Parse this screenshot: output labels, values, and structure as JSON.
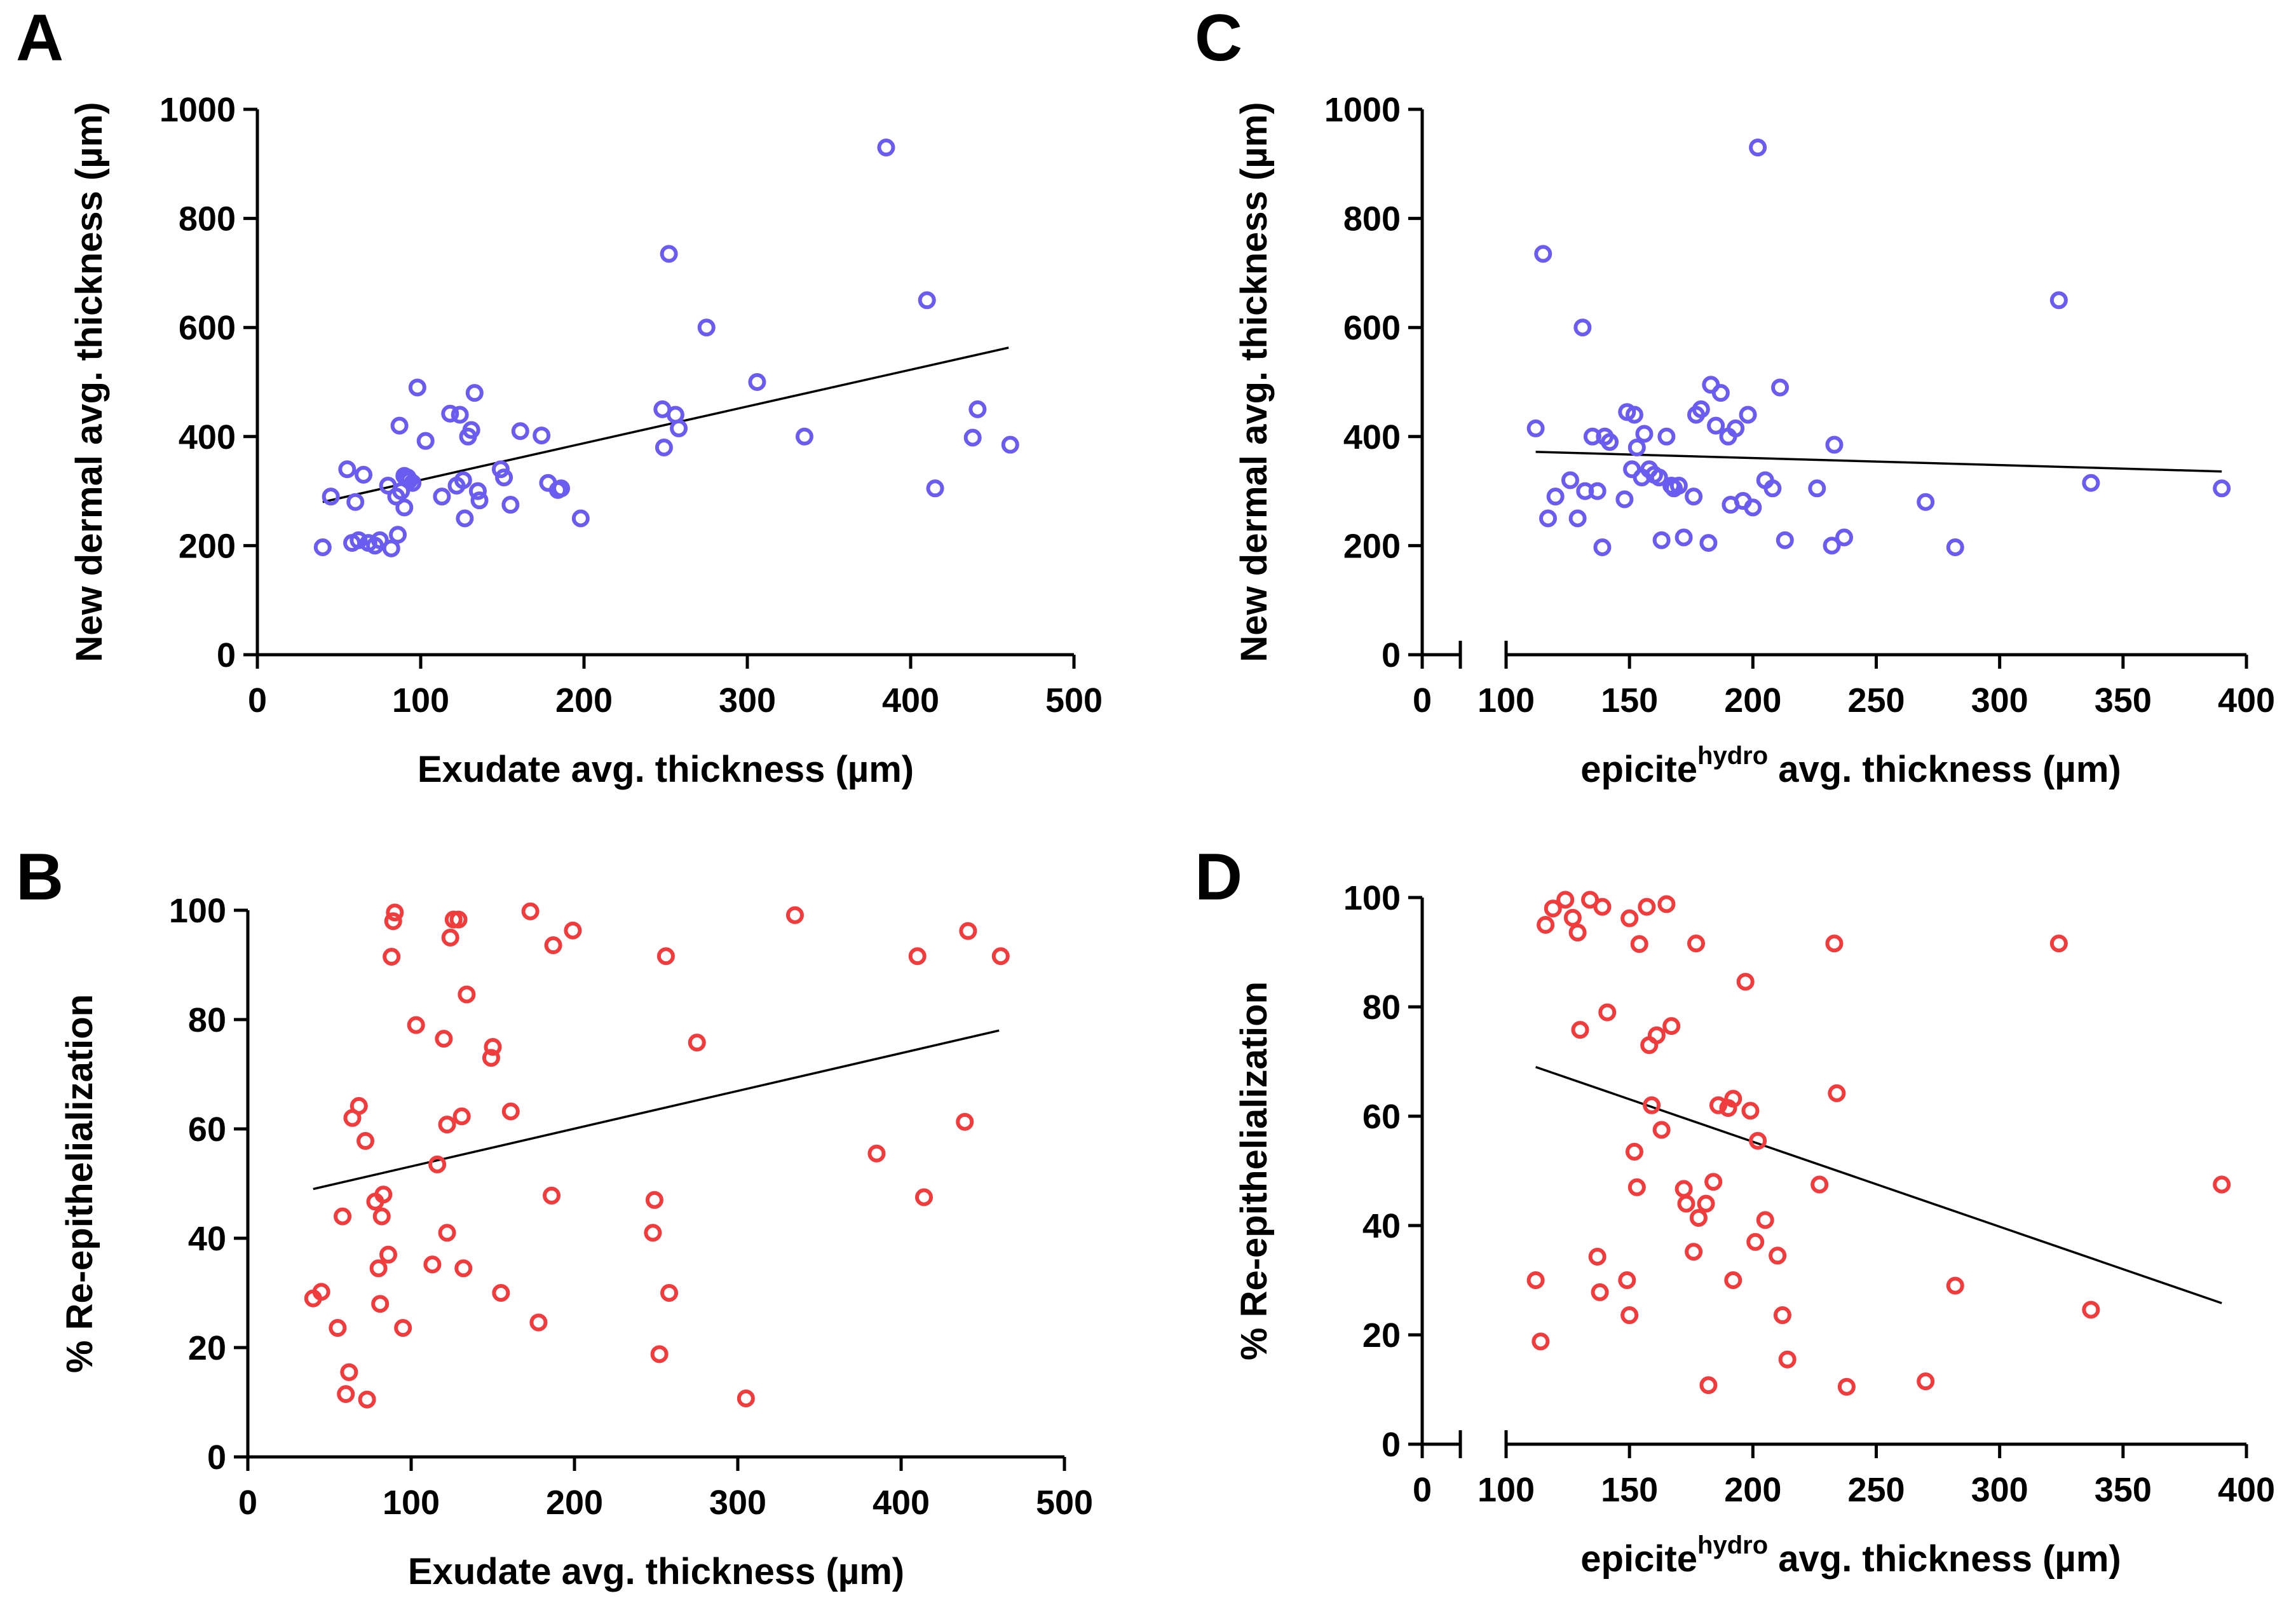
{
  "chart_data": [
    {
      "panel": "A",
      "type": "scatter",
      "xlabel": "Exudate avg. thickness (µm)",
      "ylabel": "New dermal avg. thickness (µm)",
      "xlim": [
        0,
        500
      ],
      "ylim": [
        0,
        1000
      ],
      "xticks": [
        "0",
        "100",
        "200",
        "300",
        "400",
        "500"
      ],
      "yticks": [
        "0",
        "200",
        "400",
        "600",
        "800",
        "1000"
      ],
      "marker_color": "#6b5cf0",
      "points": [
        [
          40,
          197
        ],
        [
          45,
          290
        ],
        [
          55,
          340
        ],
        [
          58,
          205
        ],
        [
          60,
          280
        ],
        [
          62,
          210
        ],
        [
          65,
          330
        ],
        [
          68,
          205
        ],
        [
          72,
          200
        ],
        [
          75,
          210
        ],
        [
          80,
          310
        ],
        [
          82,
          195
        ],
        [
          85,
          290
        ],
        [
          86,
          220
        ],
        [
          87,
          420
        ],
        [
          88,
          300
        ],
        [
          90,
          270
        ],
        [
          90,
          328
        ],
        [
          92,
          325
        ],
        [
          93,
          320
        ],
        [
          95,
          315
        ],
        [
          98,
          490
        ],
        [
          103,
          392
        ],
        [
          113,
          290
        ],
        [
          118,
          442
        ],
        [
          122,
          310
        ],
        [
          124,
          440
        ],
        [
          126,
          320
        ],
        [
          127,
          250
        ],
        [
          129,
          400
        ],
        [
          131,
          412
        ],
        [
          133,
          480
        ],
        [
          135,
          300
        ],
        [
          136,
          283
        ],
        [
          149,
          340
        ],
        [
          151,
          325
        ],
        [
          155,
          275
        ],
        [
          161,
          410
        ],
        [
          174,
          402
        ],
        [
          178,
          315
        ],
        [
          184,
          302
        ],
        [
          186,
          305
        ],
        [
          198,
          250
        ],
        [
          248,
          450
        ],
        [
          249,
          380
        ],
        [
          252,
          735
        ],
        [
          256,
          440
        ],
        [
          258,
          415
        ],
        [
          275,
          600
        ],
        [
          306,
          500
        ],
        [
          335,
          400
        ],
        [
          385,
          930
        ],
        [
          410,
          650
        ],
        [
          415,
          305
        ],
        [
          438,
          398
        ],
        [
          441,
          450
        ],
        [
          461,
          385
        ]
      ],
      "fit": [
        [
          40,
          280
        ],
        [
          460,
          563
        ]
      ]
    },
    {
      "panel": "B",
      "type": "scatter",
      "xlabel": "Exudate avg. thickness (µm)",
      "ylabel": "% Re-epithelialization",
      "xlim": [
        0,
        500
      ],
      "ylim": [
        0,
        100
      ],
      "xticks": [
        "0",
        "100",
        "200",
        "300",
        "400",
        "500"
      ],
      "yticks": [
        "0",
        "20",
        "40",
        "60",
        "80",
        "100"
      ],
      "marker_color": "#f03c3c",
      "points": [
        [
          40,
          29
        ],
        [
          45,
          30.2
        ],
        [
          55,
          23.6
        ],
        [
          58,
          44
        ],
        [
          60,
          11.5
        ],
        [
          62,
          15.5
        ],
        [
          64,
          62
        ],
        [
          68,
          64.2
        ],
        [
          72,
          57.8
        ],
        [
          73,
          10.5
        ],
        [
          78,
          46.7
        ],
        [
          80,
          34.5
        ],
        [
          81,
          28
        ],
        [
          82,
          44
        ],
        [
          83,
          48
        ],
        [
          86,
          37
        ],
        [
          88,
          91.5
        ],
        [
          89,
          98
        ],
        [
          90,
          99.6
        ],
        [
          95,
          23.6
        ],
        [
          103,
          79
        ],
        [
          113,
          35.2
        ],
        [
          116,
          53.5
        ],
        [
          120,
          76.5
        ],
        [
          122,
          60.8
        ],
        [
          122,
          41
        ],
        [
          124,
          95
        ],
        [
          126,
          98.3
        ],
        [
          129,
          98.3
        ],
        [
          131,
          62.3
        ],
        [
          132,
          34.5
        ],
        [
          134,
          84.6
        ],
        [
          149,
          73
        ],
        [
          150,
          75
        ],
        [
          155,
          30
        ],
        [
          161,
          63.2
        ],
        [
          173,
          99.8
        ],
        [
          178,
          24.6
        ],
        [
          186,
          47.8
        ],
        [
          187,
          93.6
        ],
        [
          199,
          96.3
        ],
        [
          248,
          41
        ],
        [
          249,
          47
        ],
        [
          252,
          18.8
        ],
        [
          256,
          91.6
        ],
        [
          258,
          30
        ],
        [
          275,
          75.8
        ],
        [
          305,
          10.7
        ],
        [
          335,
          99.1
        ],
        [
          385,
          55.5
        ],
        [
          410,
          91.6
        ],
        [
          414,
          47.5
        ],
        [
          439,
          61.3
        ],
        [
          441,
          96.2
        ],
        [
          461,
          91.6
        ]
      ],
      "fit": [
        [
          40,
          49
        ],
        [
          460,
          78
        ]
      ]
    },
    {
      "panel": "C",
      "type": "scatter",
      "xlabel_main": "epicite",
      "xlabel_sup": "hydro",
      "xlabel_rest": " avg. thickness (µm)",
      "ylabel": "New dermal avg. thickness (µm)",
      "xlim": [
        100,
        400
      ],
      "x_break": "0",
      "ylim": [
        0,
        1000
      ],
      "xticks": [
        "0",
        "100",
        "150",
        "200",
        "250",
        "300",
        "350",
        "400"
      ],
      "yticks": [
        "0",
        "200",
        "400",
        "600",
        "800",
        "1000"
      ],
      "marker_color": "#6b5cf0",
      "points": [
        [
          112,
          415
        ],
        [
          115,
          735
        ],
        [
          117,
          250
        ],
        [
          120,
          290
        ],
        [
          126,
          320
        ],
        [
          129,
          250
        ],
        [
          131,
          600
        ],
        [
          132,
          300
        ],
        [
          135,
          400
        ],
        [
          137,
          300
        ],
        [
          139,
          197
        ],
        [
          140,
          400
        ],
        [
          142,
          390
        ],
        [
          148,
          285
        ],
        [
          149,
          445
        ],
        [
          151,
          340
        ],
        [
          152,
          440
        ],
        [
          153,
          380
        ],
        [
          155,
          325
        ],
        [
          156,
          405
        ],
        [
          158,
          340
        ],
        [
          160,
          330
        ],
        [
          162,
          325
        ],
        [
          163,
          210
        ],
        [
          165,
          400
        ],
        [
          167,
          310
        ],
        [
          168,
          305
        ],
        [
          170,
          310
        ],
        [
          172,
          215
        ],
        [
          176,
          290
        ],
        [
          177,
          440
        ],
        [
          179,
          450
        ],
        [
          182,
          205
        ],
        [
          183,
          495
        ],
        [
          185,
          420
        ],
        [
          187,
          480
        ],
        [
          190,
          400
        ],
        [
          191,
          275
        ],
        [
          193,
          415
        ],
        [
          196,
          282
        ],
        [
          198,
          440
        ],
        [
          200,
          270
        ],
        [
          202,
          930
        ],
        [
          205,
          320
        ],
        [
          208,
          305
        ],
        [
          211,
          490
        ],
        [
          213,
          210
        ],
        [
          226,
          305
        ],
        [
          232,
          200
        ],
        [
          233,
          385
        ],
        [
          237,
          215
        ],
        [
          270,
          280
        ],
        [
          282,
          197
        ],
        [
          324,
          650
        ],
        [
          337,
          315
        ],
        [
          390,
          305
        ]
      ],
      "fit": [
        [
          112,
          372
        ],
        [
          390,
          336
        ]
      ]
    },
    {
      "panel": "D",
      "type": "scatter",
      "xlabel_main": "epicite",
      "xlabel_sup": "hydro",
      "xlabel_rest": " avg. thickness (µm)",
      "ylabel": "% Re-epithelialization",
      "xlim": [
        100,
        400
      ],
      "x_break": "0",
      "ylim": [
        0,
        100
      ],
      "xticks": [
        "0",
        "100",
        "150",
        "200",
        "250",
        "300",
        "350",
        "400"
      ],
      "yticks": [
        "0",
        "20",
        "40",
        "60",
        "80",
        "100"
      ],
      "marker_color": "#f03c3c",
      "points": [
        [
          112,
          30
        ],
        [
          114,
          18.8
        ],
        [
          116,
          95
        ],
        [
          119,
          98
        ],
        [
          124,
          99.6
        ],
        [
          127,
          96.3
        ],
        [
          129,
          93.6
        ],
        [
          130,
          75.8
        ],
        [
          134,
          99.6
        ],
        [
          137,
          34.3
        ],
        [
          138,
          27.8
        ],
        [
          139,
          98.3
        ],
        [
          141,
          79
        ],
        [
          149,
          30
        ],
        [
          150,
          23.6
        ],
        [
          150,
          96.2
        ],
        [
          152,
          53.5
        ],
        [
          153,
          47
        ],
        [
          154,
          91.5
        ],
        [
          157,
          98.3
        ],
        [
          158,
          73
        ],
        [
          159,
          62
        ],
        [
          161,
          74.8
        ],
        [
          163,
          57.5
        ],
        [
          165,
          98.8
        ],
        [
          167,
          76.5
        ],
        [
          172,
          46.7
        ],
        [
          173,
          44
        ],
        [
          176,
          35.2
        ],
        [
          177,
          91.6
        ],
        [
          178,
          41.4
        ],
        [
          181,
          44
        ],
        [
          182,
          10.8
        ],
        [
          184,
          48
        ],
        [
          186,
          62
        ],
        [
          190,
          61.5
        ],
        [
          192,
          63.2
        ],
        [
          192,
          30
        ],
        [
          197,
          84.6
        ],
        [
          199,
          61
        ],
        [
          201,
          37
        ],
        [
          202,
          55.5
        ],
        [
          205,
          41
        ],
        [
          210,
          34.5
        ],
        [
          212,
          23.6
        ],
        [
          214,
          15.5
        ],
        [
          227,
          47.5
        ],
        [
          233,
          91.6
        ],
        [
          234,
          64.2
        ],
        [
          238,
          10.5
        ],
        [
          270,
          11.5
        ],
        [
          282,
          29
        ],
        [
          324,
          91.6
        ],
        [
          337,
          24.6
        ],
        [
          390,
          47.5
        ]
      ],
      "fit": [
        [
          112,
          69
        ],
        [
          390,
          25.8
        ]
      ]
    }
  ]
}
